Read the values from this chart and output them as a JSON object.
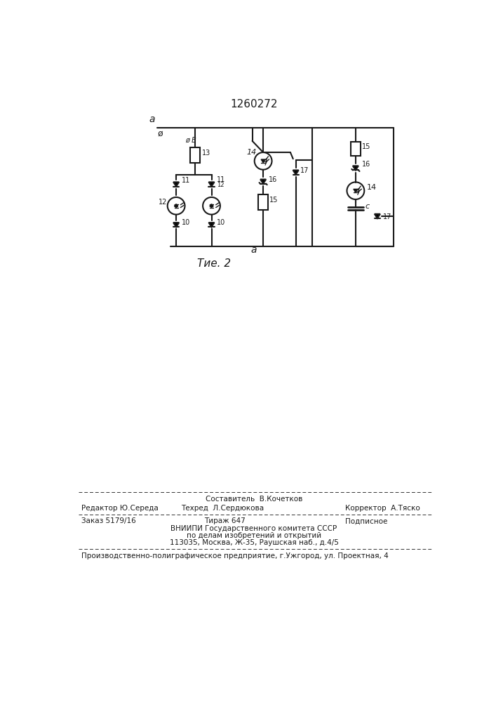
{
  "title": "1260272",
  "fig_label": "Τие. 2",
  "background_color": "#ffffff",
  "line_color": "#1a1a1a",
  "text_color": "#1a1a1a",
  "footer": {
    "line1_center": "Составитель  В.Кочетков",
    "line2_left": "Редактор Ю.Середа",
    "line2_center": "Техред  Л.Сердюкова",
    "line2_right": "Корректор  А.Тяско",
    "line3_left": "Заказ 5179/16",
    "line3_center": "Тираж 647",
    "line3_right": "Подписное",
    "line4": "ВНИИПИ Государственного комитета СССР",
    "line5": "по делам изобретений и открытий",
    "line6": "113035, Москва, Ж-35, Раушская наб., д.4/5",
    "line7": "Производственно-полиграфическое предприятие, г.Ужгород, ул. Проектная, 4"
  }
}
